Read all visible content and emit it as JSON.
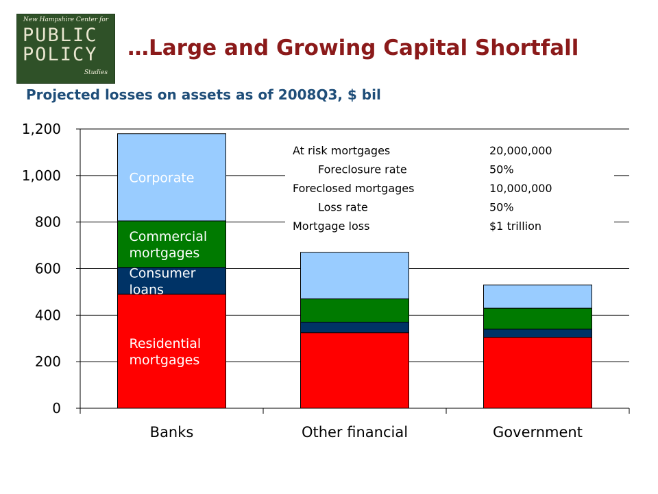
{
  "logo": {
    "top_text": "New Hampshire Center for",
    "line1": "PUBLIC",
    "line2": "POLICY",
    "bottom_text": "Studies"
  },
  "slide": {
    "title": "…Large and Growing Capital Shortfall",
    "subtitle": "Projected losses on assets as of 2008Q3, $ bil"
  },
  "chart_data": {
    "type": "bar",
    "stacked": true,
    "title": "Projected losses on assets as of 2008Q3, $ bil",
    "categories": [
      "Banks",
      "Other financial",
      "Government"
    ],
    "series": [
      {
        "name": "Residential mortgages",
        "label_lines": [
          "Residential",
          "mortgages"
        ],
        "color": "#ff0000",
        "values": [
          490,
          325,
          305
        ]
      },
      {
        "name": "Consumer loans",
        "label_lines": [
          "Consumer",
          "loans"
        ],
        "color": "#003366",
        "values": [
          115,
          45,
          35
        ]
      },
      {
        "name": "Commercial mortgages",
        "label_lines": [
          "Commercial",
          "mortgages"
        ],
        "color": "#007a00",
        "values": [
          200,
          100,
          90
        ]
      },
      {
        "name": "Corporate",
        "label_lines": [
          "Corporate"
        ],
        "color": "#99ccff",
        "values": [
          375,
          200,
          100
        ]
      }
    ],
    "ylim": [
      0,
      1200
    ],
    "yticks": [
      0,
      200,
      400,
      600,
      800,
      1000,
      1200
    ],
    "ytick_labels": [
      "0",
      "200",
      "400",
      "600",
      "800",
      "1,000",
      "1,200"
    ],
    "grid": true,
    "xlabel": "",
    "ylabel": "",
    "annotation_table": [
      {
        "label": "At risk mortgages",
        "value": "20,000,000",
        "indent": false
      },
      {
        "label": "Foreclosure rate",
        "value": "50%",
        "indent": true
      },
      {
        "label": "Foreclosed mortgages",
        "value": "10,000,000",
        "indent": false
      },
      {
        "label": "Loss rate",
        "value": "50%",
        "indent": true
      },
      {
        "label": "Mortgage loss",
        "value": "$1 trillion",
        "indent": false
      }
    ]
  }
}
